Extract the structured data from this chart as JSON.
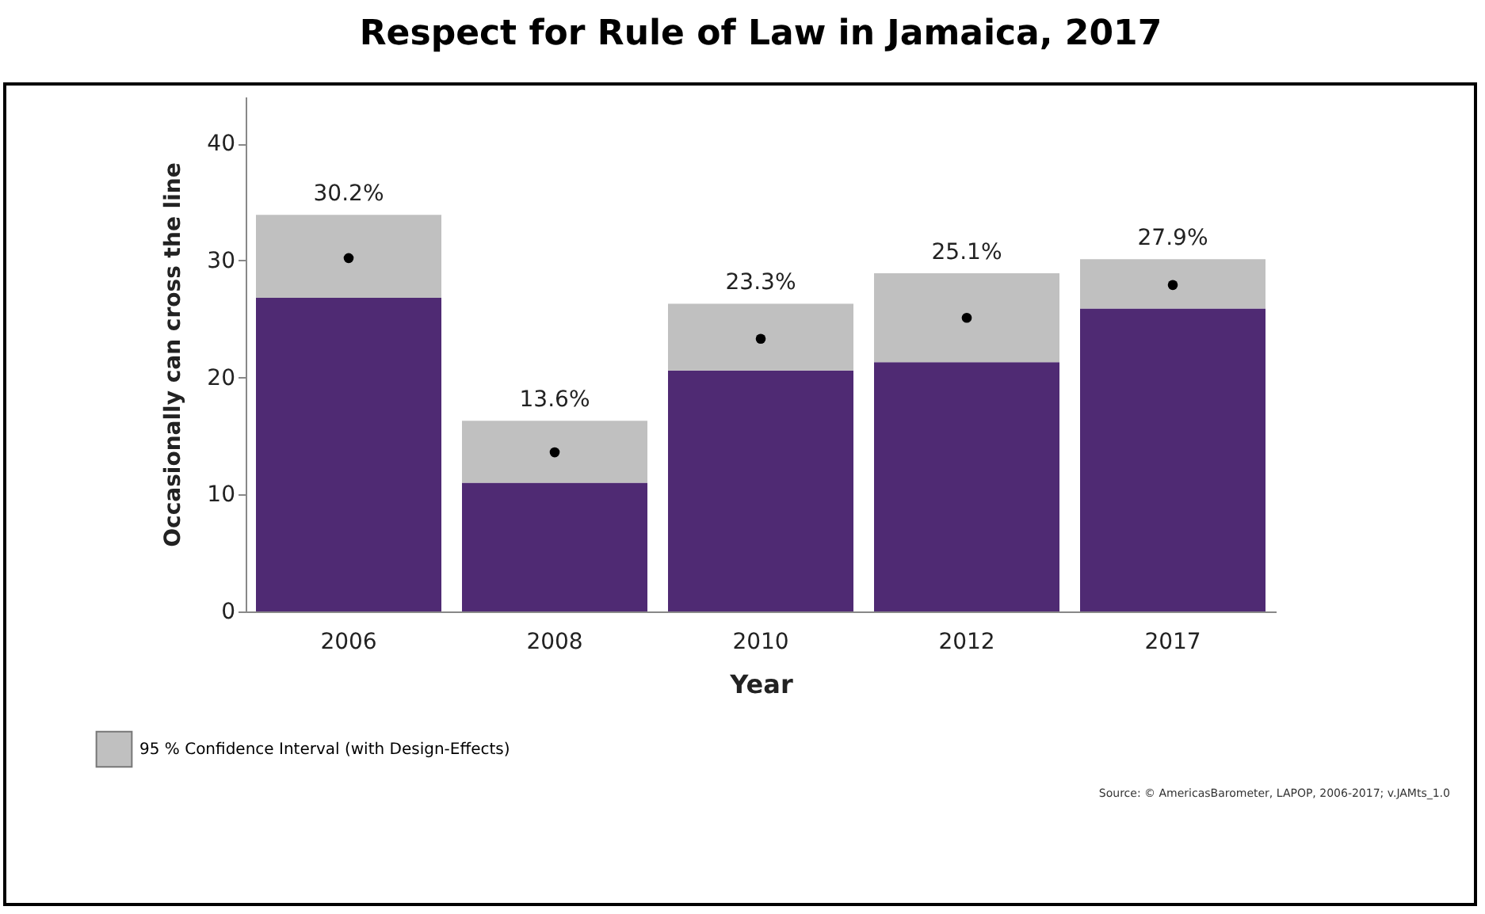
{
  "chart_data": {
    "type": "bar",
    "title": "Respect for Rule of Law in Jamaica, 2017",
    "xlabel": "Year",
    "ylabel": "Occasionally can cross the line",
    "categories": [
      "2006",
      "2008",
      "2010",
      "2012",
      "2017"
    ],
    "stacked": true,
    "series": [
      {
        "color": "#4f2a73",
        "values": [
          26.8,
          11.0,
          20.6,
          21.3,
          25.9
        ]
      },
      {
        "name": "95 % Confidence Interval (with Design-Effects)",
        "color": "#c0c0c0",
        "values": [
          7.1,
          5.3,
          5.7,
          7.6,
          4.2
        ]
      },
      {
        "type": "scatter",
        "color": "#000000",
        "values": [
          30.2,
          13.6,
          23.3,
          25.1,
          27.9
        ],
        "value_labels": [
          "30.2%",
          "13.6%",
          "23.3%",
          "25.1%",
          "27.9%"
        ]
      }
    ],
    "marker": "circle",
    "ylim": [
      0,
      44
    ],
    "yticks": [
      0,
      10,
      20,
      30,
      40
    ],
    "legend": "bottom left",
    "annotations": [
      "Source: © AmericasBarometer, LAPOP, 2006-2017; v.JAMts_1.0"
    ]
  }
}
